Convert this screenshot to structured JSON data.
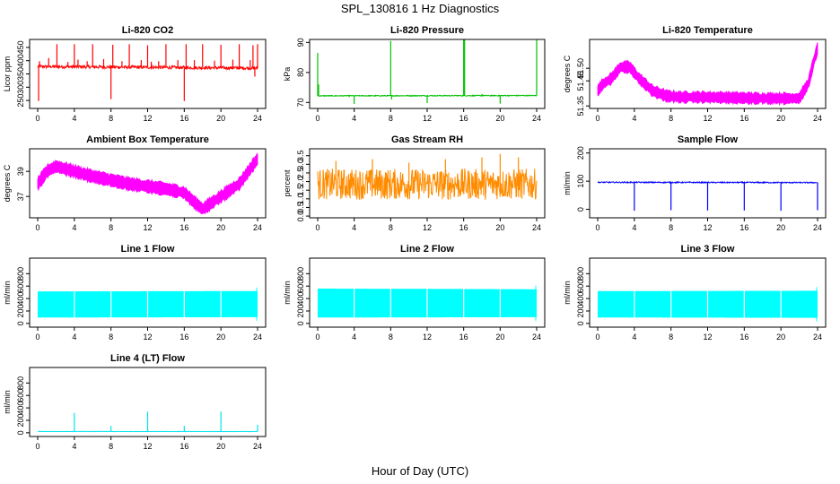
{
  "page": {
    "title": "SPL_130816  1 Hz Diagnostics",
    "xlabel": "Hour of Day (UTC)"
  },
  "chart_data": [
    {
      "type": "line",
      "title": "Li-820 CO2",
      "ylabel": "Licor ppm",
      "color": "#ff0000",
      "xlim": [
        0,
        24
      ],
      "xticks": [
        0,
        4,
        8,
        12,
        16,
        20,
        24
      ],
      "ylim": [
        220,
        480
      ],
      "yticks": [
        250,
        300,
        350,
        400,
        450
      ],
      "pattern": "noisy_spiky",
      "base": [
        [
          0,
          378
        ],
        [
          24,
          372
        ]
      ],
      "noise": 6,
      "spikes": [
        [
          0.1,
          248
        ],
        [
          0.2,
          398
        ],
        [
          1.2,
          410
        ],
        [
          2.1,
          462
        ],
        [
          3.3,
          395
        ],
        [
          4.0,
          462
        ],
        [
          4.4,
          404
        ],
        [
          5.4,
          398
        ],
        [
          6.0,
          462
        ],
        [
          7.2,
          406
        ],
        [
          8.0,
          255
        ],
        [
          8.2,
          460
        ],
        [
          9.2,
          398
        ],
        [
          10.0,
          462
        ],
        [
          11.3,
          402
        ],
        [
          12.0,
          458
        ],
        [
          12.4,
          396
        ],
        [
          13.2,
          398
        ],
        [
          14.0,
          462
        ],
        [
          15.3,
          402
        ],
        [
          16.0,
          248
        ],
        [
          16.2,
          462
        ],
        [
          17.1,
          402
        ],
        [
          18.0,
          462
        ],
        [
          19.3,
          400
        ],
        [
          20.0,
          460
        ],
        [
          21.3,
          404
        ],
        [
          22.0,
          462
        ],
        [
          23.2,
          402
        ],
        [
          23.5,
          458
        ],
        [
          23.7,
          340
        ],
        [
          24.0,
          462
        ]
      ]
    },
    {
      "type": "line",
      "title": "Li-820 Pressure",
      "ylabel": "kPa",
      "color": "#00c000",
      "xlim": [
        0,
        24
      ],
      "xticks": [
        0,
        4,
        8,
        12,
        16,
        20,
        24
      ],
      "ylim": [
        68,
        91
      ],
      "yticks": [
        70,
        80,
        90
      ],
      "pattern": "noisy_spiky",
      "base": [
        [
          0,
          72.2
        ],
        [
          24,
          72.3
        ]
      ],
      "noise": 0.15,
      "spikes": [
        [
          0.0,
          86.5
        ],
        [
          0.1,
          76
        ],
        [
          4.0,
          69.5
        ],
        [
          8.0,
          90.5
        ],
        [
          8.1,
          71
        ],
        [
          12.0,
          69.8
        ],
        [
          16.0,
          91
        ],
        [
          16.1,
          91
        ],
        [
          18.0,
          72.8
        ],
        [
          20.0,
          69.6
        ],
        [
          24.0,
          91
        ]
      ]
    },
    {
      "type": "line",
      "title": "Li-820 Temperature",
      "ylabel": "degrees C",
      "color": "#ff00ff",
      "xlim": [
        0,
        24
      ],
      "xticks": [
        0,
        4,
        8,
        12,
        16,
        20,
        24
      ],
      "ylim": [
        51.34,
        51.615
      ],
      "yticks": [
        51.35,
        51.45,
        51.5
      ],
      "pattern": "band",
      "base": [
        [
          0,
          51.41
        ],
        [
          0.5,
          51.435
        ],
        [
          1.5,
          51.46
        ],
        [
          2.5,
          51.505
        ],
        [
          3.5,
          51.505
        ],
        [
          4.5,
          51.46
        ],
        [
          6.0,
          51.41
        ],
        [
          7.5,
          51.39
        ],
        [
          9.0,
          51.385
        ],
        [
          12.0,
          51.385
        ],
        [
          18.0,
          51.38
        ],
        [
          22.0,
          51.38
        ],
        [
          23.0,
          51.44
        ],
        [
          23.6,
          51.53
        ],
        [
          24.0,
          51.58
        ]
      ],
      "halfwidth": 0.02
    },
    {
      "type": "line",
      "title": "Ambient Box Temperature",
      "ylabel": "degrees C",
      "color": "#ff00ff",
      "xlim": [
        0,
        24
      ],
      "xticks": [
        0,
        4,
        8,
        12,
        16,
        20,
        24
      ],
      "ylim": [
        35.3,
        40.8
      ],
      "yticks": [
        37,
        39
      ],
      "pattern": "band",
      "base": [
        [
          0,
          38.0
        ],
        [
          1,
          39.0
        ],
        [
          2,
          39.4
        ],
        [
          4,
          39.0
        ],
        [
          6,
          38.6
        ],
        [
          8,
          38.3
        ],
        [
          10,
          38.0
        ],
        [
          12,
          37.8
        ],
        [
          14,
          37.6
        ],
        [
          16,
          37.3
        ],
        [
          17,
          36.6
        ],
        [
          18,
          36.0
        ],
        [
          20,
          37.0
        ],
        [
          22,
          38.0
        ],
        [
          24,
          40.0
        ]
      ],
      "halfwidth": 0.45
    },
    {
      "type": "line",
      "title": "Gas Stream RH",
      "ylabel": "percent",
      "color": "#ff8c00",
      "xlim": [
        0,
        24
      ],
      "xticks": [
        0,
        4,
        8,
        12,
        16,
        20,
        24
      ],
      "ylim": [
        -0.1,
        3.9
      ],
      "yticks": [
        0.0,
        0.5,
        1.0,
        1.5,
        2.0,
        2.5,
        3.0,
        3.5
      ],
      "pattern": "noisy_spiky",
      "base": [
        [
          0,
          1.85
        ],
        [
          24,
          1.85
        ]
      ],
      "noise": 0.9,
      "spikes": [
        [
          2,
          3.2
        ],
        [
          6,
          3.3
        ],
        [
          10,
          3.1
        ],
        [
          14,
          3.3
        ],
        [
          18,
          3.4
        ],
        [
          20,
          3.6
        ],
        [
          22,
          3.4
        ]
      ]
    },
    {
      "type": "line",
      "title": "Sample Flow",
      "ylabel": "ml/min",
      "color": "#0000ff",
      "xlim": [
        0,
        24
      ],
      "xticks": [
        0,
        4,
        8,
        12,
        16,
        20,
        24
      ],
      "ylim": [
        -30,
        215
      ],
      "yticks": [
        0,
        100,
        200
      ],
      "pattern": "noisy_spiky",
      "base": [
        [
          0,
          96
        ],
        [
          24,
          95
        ]
      ],
      "noise": 2,
      "spikes": [
        [
          4,
          -5
        ],
        [
          8,
          -3
        ],
        [
          12,
          -4
        ],
        [
          16,
          -4
        ],
        [
          20,
          -5
        ],
        [
          24,
          -3
        ]
      ]
    },
    {
      "type": "area",
      "title": "Line 1 Flow",
      "ylabel": "ml/min",
      "color": "#00ffff",
      "xlim": [
        0,
        24
      ],
      "xticks": [
        0,
        4,
        8,
        12,
        16,
        20,
        24
      ],
      "ylim": [
        -60,
        1050
      ],
      "yticks": [
        0,
        200,
        400,
        600,
        800
      ],
      "pattern": "fill",
      "upper": [
        [
          0,
          515
        ],
        [
          24,
          520
        ]
      ],
      "lower": [
        [
          0,
          95
        ],
        [
          24,
          100
        ]
      ],
      "gaps": [
        4,
        8,
        12,
        16,
        20
      ]
    },
    {
      "type": "area",
      "title": "Line 2 Flow",
      "ylabel": "ml/min",
      "color": "#00ffff",
      "xlim": [
        0,
        24
      ],
      "xticks": [
        0,
        4,
        8,
        12,
        16,
        20,
        24
      ],
      "ylim": [
        -60,
        1050
      ],
      "yticks": [
        0,
        200,
        400,
        600,
        800
      ],
      "pattern": "fill",
      "upper": [
        [
          0,
          560
        ],
        [
          24,
          550
        ]
      ],
      "lower": [
        [
          0,
          95
        ],
        [
          24,
          100
        ]
      ],
      "gaps": [
        4,
        8,
        12,
        16,
        20
      ]
    },
    {
      "type": "area",
      "title": "Line 3 Flow",
      "ylabel": "ml/min",
      "color": "#00ffff",
      "xlim": [
        0,
        24
      ],
      "xticks": [
        0,
        4,
        8,
        12,
        16,
        20,
        24
      ],
      "ylim": [
        -60,
        1050
      ],
      "yticks": [
        0,
        200,
        400,
        600,
        800
      ],
      "pattern": "fill",
      "upper": [
        [
          0,
          520
        ],
        [
          24,
          525
        ]
      ],
      "lower": [
        [
          0,
          95
        ],
        [
          24,
          90
        ]
      ],
      "gaps": [
        4,
        8,
        12,
        16,
        20
      ]
    },
    {
      "type": "line",
      "title": "Line 4 (LT) Flow",
      "ylabel": "ml/min",
      "color": "#00e5ee",
      "xlim": [
        0,
        24
      ],
      "xticks": [
        0,
        4,
        8,
        12,
        16,
        20,
        24
      ],
      "ylim": [
        -60,
        1050
      ],
      "yticks": [
        0,
        200,
        400,
        600,
        800
      ],
      "pattern": "noisy_spiky",
      "base": [
        [
          0,
          20
        ],
        [
          24,
          20
        ]
      ],
      "noise": 2,
      "spikes": [
        [
          4,
          320
        ],
        [
          8,
          110
        ],
        [
          12,
          340
        ],
        [
          16,
          110
        ],
        [
          20,
          340
        ],
        [
          24,
          130
        ]
      ]
    }
  ]
}
